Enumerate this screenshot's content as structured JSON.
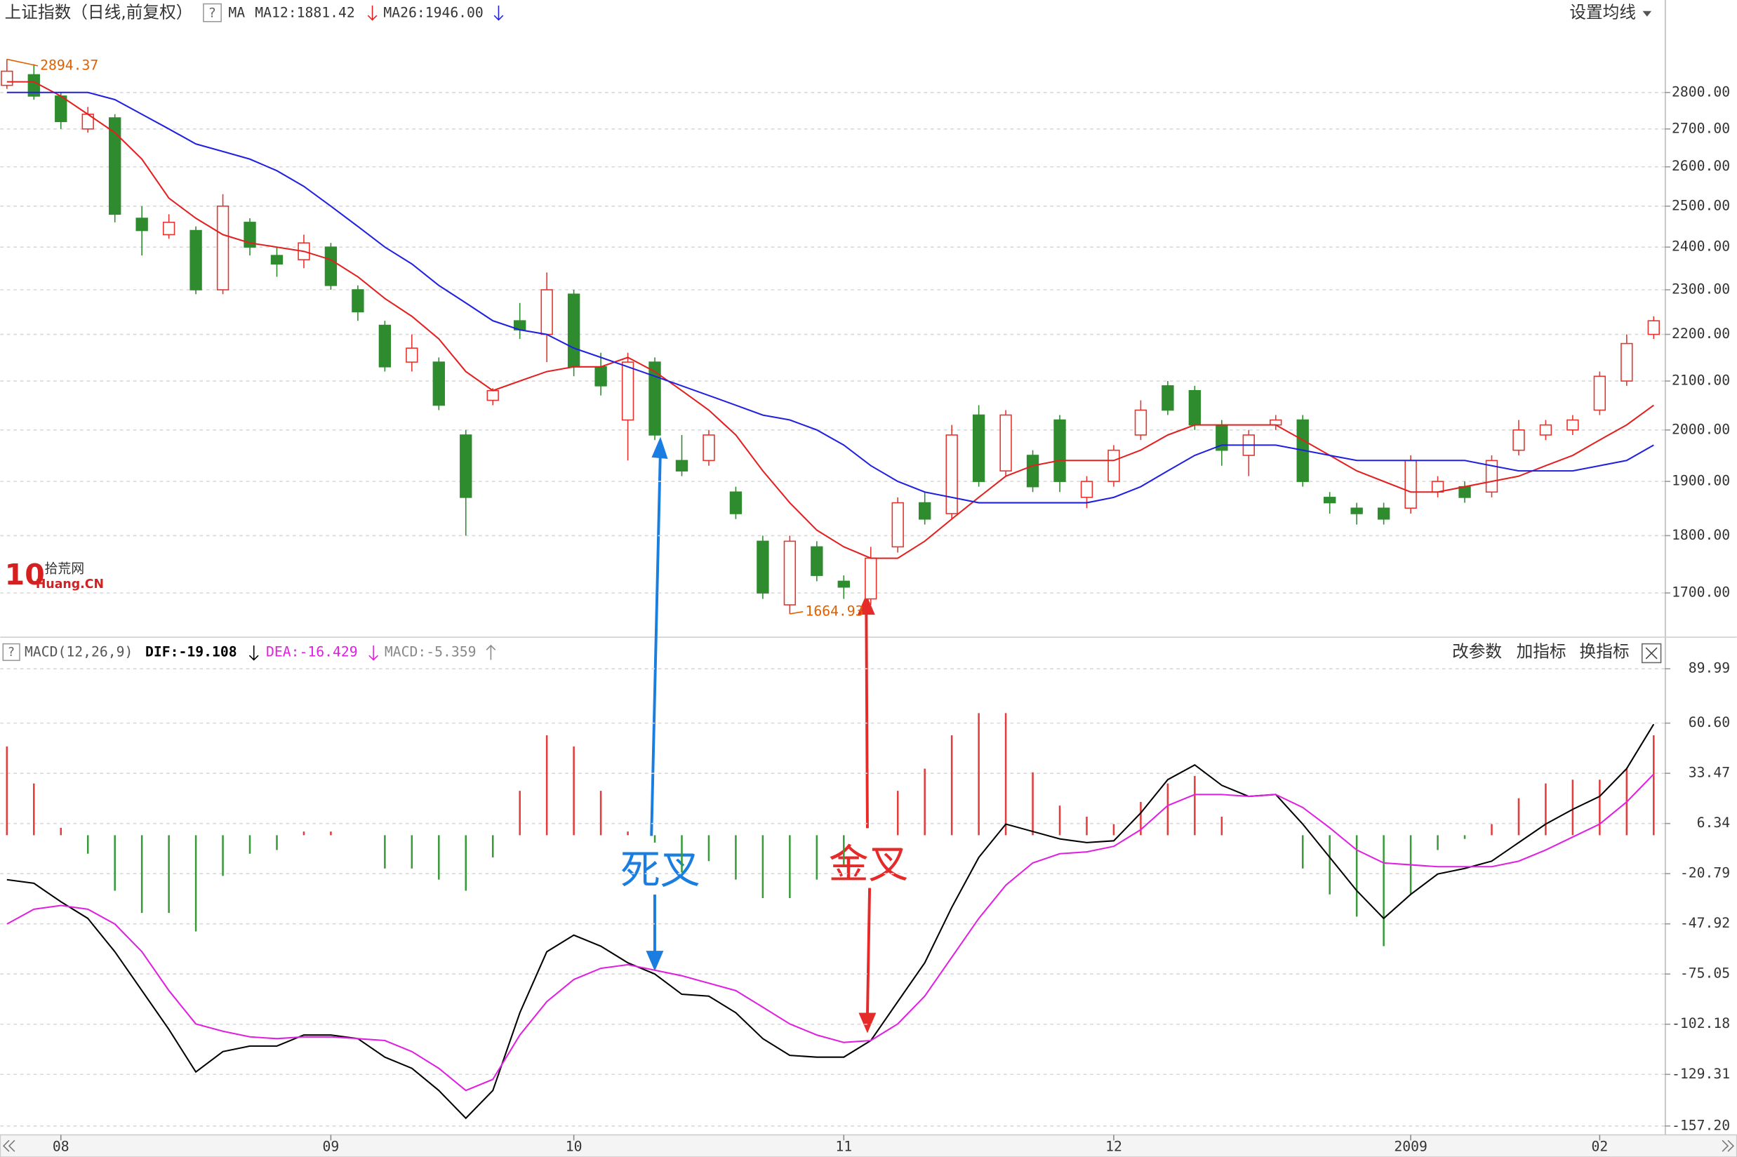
{
  "help_label": "?",
  "toolbar": {
    "settings": "设置均线",
    "params": "改参数",
    "add": "加指标",
    "switch": "换指标"
  },
  "logo": {
    "mark": "10",
    "name": "拾荒网",
    "site": "Huang.CN"
  },
  "annotations": {
    "death_cross": "死叉",
    "golden_cross": "金叉"
  },
  "chart_data": [
    {
      "type": "candlestick",
      "title": "上证指数（日线,前复权）",
      "indicator": "MA",
      "log_scale": true,
      "grid": true,
      "up_color": "#e8322b",
      "down_color": "#2e8b2e",
      "ylim": [
        1633,
        2977
      ],
      "yticks": [
        {
          "value": 1700,
          "label": "1700.00"
        },
        {
          "value": 1800,
          "label": "1800.00"
        },
        {
          "value": 1900,
          "label": "1900.00"
        },
        {
          "value": 2000,
          "label": "2000.00"
        },
        {
          "value": 2100,
          "label": "2100.00"
        },
        {
          "value": 2200,
          "label": "2200.00"
        },
        {
          "value": 2300,
          "label": "2300.00"
        },
        {
          "value": 2400,
          "label": "2400.00"
        },
        {
          "value": 2500,
          "label": "2500.00"
        },
        {
          "value": 2600,
          "label": "2600.00"
        },
        {
          "value": 2700,
          "label": "2700.00"
        },
        {
          "value": 2800,
          "label": "2800.00"
        }
      ],
      "high_label": "2894.37",
      "low_label": "1664.93",
      "open": [
        2820,
        2850,
        2790,
        2700,
        2730,
        2470,
        2430,
        2440,
        2300,
        2460,
        2380,
        2370,
        2400,
        2300,
        2220,
        2140,
        2140,
        1990,
        2060,
        2230,
        2200,
        2290,
        2130,
        2020,
        2140,
        1940,
        1940,
        1880,
        1790,
        1680,
        1780,
        1720,
        1690,
        1780,
        1860,
        1840,
        2030,
        1920,
        1950,
        2020,
        1870,
        1900,
        1990,
        2090,
        2080,
        2010,
        1950,
        2010,
        2020,
        1870,
        1850,
        1850,
        1850,
        1880,
        1890,
        1880,
        1960,
        1990,
        2000,
        2040,
        2100,
        2200
      ],
      "close": [
        2860,
        2790,
        2720,
        2740,
        2480,
        2440,
        2460,
        2300,
        2500,
        2400,
        2360,
        2410,
        2310,
        2250,
        2130,
        2170,
        2050,
        1870,
        2080,
        2210,
        2300,
        2130,
        2090,
        2140,
        1990,
        1920,
        1990,
        1840,
        1700,
        1790,
        1730,
        1710,
        1760,
        1860,
        1830,
        1990,
        1900,
        2030,
        1890,
        1900,
        1900,
        1960,
        2040,
        2040,
        2010,
        1960,
        1990,
        2020,
        1900,
        1860,
        1840,
        1830,
        1940,
        1900,
        1870,
        1940,
        2000,
        2010,
        2020,
        2110,
        2180,
        2230
      ],
      "high": [
        2894.37,
        2880,
        2800,
        2760,
        2740,
        2500,
        2480,
        2450,
        2530,
        2470,
        2400,
        2430,
        2410,
        2310,
        2230,
        2200,
        2150,
        2000,
        2085,
        2270,
        2340,
        2300,
        2160,
        2160,
        2150,
        1990,
        2000,
        1890,
        1800,
        1800,
        1790,
        1730,
        1780,
        1870,
        1880,
        2010,
        2050,
        2040,
        1960,
        2030,
        1910,
        1970,
        2060,
        2100,
        2090,
        2020,
        2000,
        2030,
        2030,
        1880,
        1860,
        1860,
        1950,
        1910,
        1900,
        1950,
        2020,
        2020,
        2030,
        2120,
        2200,
        2240
      ],
      "low": [
        2810,
        2780,
        2700,
        2690,
        2460,
        2380,
        2420,
        2290,
        2290,
        2380,
        2330,
        2350,
        2300,
        2230,
        2120,
        2120,
        2040,
        1800,
        2050,
        2190,
        2140,
        2110,
        2070,
        1940,
        1980,
        1910,
        1930,
        1830,
        1690,
        1664.93,
        1720,
        1690,
        1680,
        1770,
        1820,
        1830,
        1890,
        1910,
        1880,
        1880,
        1850,
        1890,
        1980,
        2030,
        2000,
        1930,
        1910,
        2000,
        1890,
        1840,
        1820,
        1820,
        1840,
        1870,
        1860,
        1870,
        1950,
        1980,
        1990,
        2030,
        2090,
        2190
      ],
      "series": [
        {
          "name": "MA12:1881.42",
          "color": "#e32020",
          "values": [
            2830,
            2830,
            2790,
            2740,
            2690,
            2620,
            2520,
            2470,
            2430,
            2410,
            2400,
            2390,
            2370,
            2330,
            2280,
            2240,
            2190,
            2120,
            2080,
            2100,
            2120,
            2130,
            2130,
            2150,
            2120,
            2080,
            2040,
            1990,
            1920,
            1860,
            1810,
            1780,
            1760,
            1760,
            1790,
            1830,
            1870,
            1910,
            1930,
            1940,
            1940,
            1940,
            1960,
            1990,
            2010,
            2010,
            2010,
            2010,
            1980,
            1950,
            1920,
            1900,
            1880,
            1880,
            1890,
            1900,
            1910,
            1930,
            1950,
            1980,
            2010,
            2050
          ]
        },
        {
          "name": "MA26:1946.00",
          "color": "#2020e0",
          "values": [
            2800,
            2800,
            2800,
            2800,
            2780,
            2740,
            2700,
            2660,
            2640,
            2620,
            2590,
            2550,
            2500,
            2450,
            2400,
            2360,
            2310,
            2270,
            2230,
            2210,
            2200,
            2170,
            2150,
            2130,
            2110,
            2090,
            2070,
            2050,
            2030,
            2020,
            2000,
            1970,
            1930,
            1900,
            1880,
            1870,
            1860,
            1860,
            1860,
            1860,
            1860,
            1870,
            1890,
            1920,
            1950,
            1970,
            1970,
            1970,
            1960,
            1950,
            1940,
            1940,
            1940,
            1940,
            1940,
            1930,
            1920,
            1920,
            1920,
            1930,
            1940,
            1970
          ]
        }
      ]
    },
    {
      "type": "macd",
      "title": "MACD(12,26,9)",
      "grid": true,
      "categories": [
        null,
        null,
        "08",
        null,
        null,
        null,
        null,
        null,
        null,
        null,
        null,
        null,
        "09",
        null,
        null,
        null,
        null,
        null,
        null,
        null,
        null,
        "10",
        null,
        null,
        null,
        null,
        null,
        null,
        null,
        null,
        null,
        "11",
        null,
        null,
        null,
        null,
        null,
        null,
        null,
        null,
        null,
        "12",
        null,
        null,
        null,
        null,
        null,
        null,
        null,
        null,
        null,
        null,
        "2009",
        null,
        null,
        null,
        null,
        null,
        null,
        "02",
        null,
        null
      ],
      "ylim": [
        -162,
        93.6
      ],
      "yticks": [
        {
          "value": -157.2,
          "label": "-157.20"
        },
        -129.31,
        -102.18,
        -75.05,
        -47.92,
        -20.79,
        6.34,
        33.47,
        {
          "value": 60.6,
          "label": "60.60"
        },
        89.99
      ],
      "series": [
        {
          "name": "DIF:-19.108",
          "color": "#000000",
          "values": [
            -24,
            -26,
            -36,
            -45,
            -63,
            -84,
            -105,
            -128,
            -117,
            -114,
            -114,
            -108,
            -108,
            -110,
            -120,
            -126,
            -138,
            -153,
            -138,
            -96,
            -63,
            -54,
            -60,
            -69,
            -75,
            -86,
            -87,
            -96,
            -110,
            -119,
            -120,
            -120,
            -111,
            -90,
            -69,
            -39,
            -12,
            6,
            2,
            -2,
            -4,
            -3,
            12,
            30,
            38,
            27,
            21,
            22,
            6,
            -12,
            -30,
            -45,
            -32,
            -21,
            -18,
            -14,
            -4,
            6,
            14,
            21,
            36,
            60
          ]
        },
        {
          "name": "DEA:-16.429",
          "color": "#e020e0",
          "values": [
            -48,
            -40,
            -38,
            -40,
            -48,
            -63,
            -84,
            -102,
            -106,
            -109,
            -110,
            -109,
            -109,
            -110,
            -111,
            -117,
            -126,
            -138,
            -132,
            -108,
            -90,
            -78,
            -72,
            -70,
            -73,
            -76,
            -80,
            -84,
            -93,
            -102,
            -108,
            -112,
            -111,
            -102,
            -87,
            -66,
            -45,
            -27,
            -15,
            -10,
            -9,
            -6,
            3,
            16,
            22,
            22,
            21,
            22,
            15,
            4,
            -8,
            -15,
            -16,
            -17,
            -17,
            -17,
            -14,
            -8,
            -1,
            6,
            18,
            33
          ]
        },
        {
          "name": "MACD:-5.359",
          "color": "#888888",
          "up_color": "#e33c3c",
          "down_color": "#3a9a3a",
          "values": [
            48,
            28,
            4,
            -10,
            -30,
            -42,
            -42,
            -52,
            -22,
            -10,
            -8,
            2,
            2,
            0,
            -18,
            -18,
            -24,
            -30,
            -12,
            24,
            54,
            48,
            24,
            2,
            -4,
            -20,
            -14,
            -24,
            -34,
            -34,
            -24,
            -16,
            0,
            24,
            36,
            54,
            66,
            66,
            34,
            16,
            10,
            6,
            18,
            28,
            32,
            10,
            0,
            0,
            -18,
            -32,
            -44,
            -60,
            -32,
            -8,
            -2,
            6,
            20,
            28,
            30,
            30,
            36,
            54
          ]
        }
      ]
    }
  ]
}
